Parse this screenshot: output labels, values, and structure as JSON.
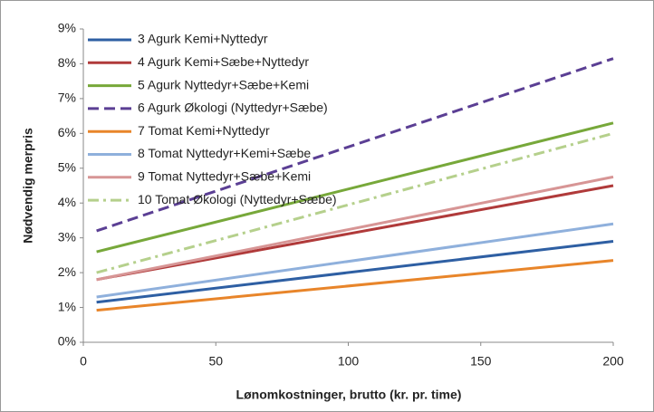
{
  "chart_data": {
    "type": "line",
    "xlabel": "Lønomkostninger, brutto (kr. pr. time)",
    "ylabel": "Nødvendig merpris",
    "x": [
      5,
      200
    ],
    "xlim": [
      0,
      200
    ],
    "xticks": [
      0,
      50,
      100,
      150,
      200
    ],
    "ylim": [
      0,
      9
    ],
    "yticks": [
      {
        "value": 0,
        "label": "0%"
      },
      {
        "value": 1,
        "label": "1%"
      },
      {
        "value": 2,
        "label": "2%"
      },
      {
        "value": 3,
        "label": "3%"
      },
      {
        "value": 4,
        "label": "4%"
      },
      {
        "value": 5,
        "label": "5%"
      },
      {
        "value": 6,
        "label": "6%"
      },
      {
        "value": 7,
        "label": "7%"
      },
      {
        "value": 8,
        "label": "8%"
      },
      {
        "value": 9,
        "label": "9%"
      }
    ],
    "grid": false,
    "legend": "top-left",
    "series": [
      {
        "name": "3 Agurk Kemi+Nyttedyr",
        "color": "#2e5fa3",
        "values": [
          1.15,
          2.9
        ]
      },
      {
        "name": "4 Agurk Kemi+Sæbe+Nyttedyr",
        "color": "#b03a3a",
        "values": [
          1.8,
          4.5
        ]
      },
      {
        "name": "5 Agurk Nyttedyr+Sæbe+Kemi",
        "color": "#77a83a",
        "values": [
          2.6,
          6.3
        ]
      },
      {
        "name": "6 Agurk Økologi (Nyttedyr+Sæbe)",
        "color": "#5b3f94",
        "dash": "dash",
        "values": [
          3.2,
          8.15
        ]
      },
      {
        "name": "7 Tomat Kemi+Nyttedyr",
        "color": "#e8852a",
        "values": [
          0.92,
          2.35
        ]
      },
      {
        "name": "8 Tomat Nyttedyr+Kemi+Sæbe",
        "color": "#8fb0dc",
        "values": [
          1.3,
          3.4
        ]
      },
      {
        "name": "9 Tomat Nyttedyr+Sæbe+Kemi",
        "color": "#d79595",
        "values": [
          1.8,
          4.75
        ]
      },
      {
        "name": "10 Tomat Økologi (Nyttedyr+Sæbe)",
        "color": "#b5d08c",
        "dash": "dashdot",
        "values": [
          2.0,
          6.0
        ]
      }
    ]
  }
}
